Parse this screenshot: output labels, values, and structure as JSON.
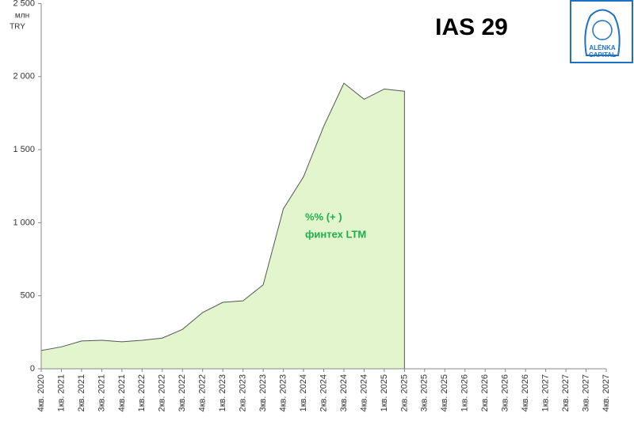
{
  "chart_data": {
    "type": "area",
    "title": "IAS 29",
    "y_unit_label": [
      "млн",
      "TRY"
    ],
    "annotation": [
      "%% (+ )",
      "финтех LTM"
    ],
    "logo": [
      "ALЁNKA",
      "CAPITAL"
    ],
    "categories": [
      "4кв. 2020",
      "1кв. 2021",
      "2кв. 2021",
      "3кв. 2021",
      "4кв. 2021",
      "1кв. 2022",
      "2кв. 2022",
      "3кв. 2022",
      "4кв. 2022",
      "1кв. 2023",
      "2кв. 2023",
      "3кв. 2023",
      "4кв. 2023",
      "1кв. 2024",
      "2кв. 2024",
      "3кв. 2024",
      "4кв. 2024",
      "1кв. 2025",
      "2кв. 2025",
      "3кв. 2025",
      "4кв. 2025",
      "1кв. 2026",
      "2кв. 2026",
      "3кв. 2026",
      "4кв. 2026",
      "1кв. 2027",
      "2кв. 2027",
      "3кв. 2027",
      "4кв. 2027"
    ],
    "values": [
      125,
      150,
      190,
      195,
      185,
      195,
      210,
      270,
      385,
      455,
      465,
      575,
      1095,
      1315,
      1660,
      1955,
      1845,
      1915,
      1900,
      null,
      null,
      null,
      null,
      null,
      null,
      null,
      null,
      null,
      null
    ],
    "color": "#e2f5cc",
    "line_color": "#555555",
    "ylim": [
      0,
      2500
    ],
    "yticks": [
      0,
      {
        "value": 500,
        "label": "500"
      },
      {
        "value": 1000,
        "label": "1 000"
      },
      {
        "value": 1500,
        "label": "1 500"
      },
      {
        "value": 2000,
        "label": "2 000"
      },
      {
        "value": 2500,
        "label": "2 500"
      }
    ]
  }
}
